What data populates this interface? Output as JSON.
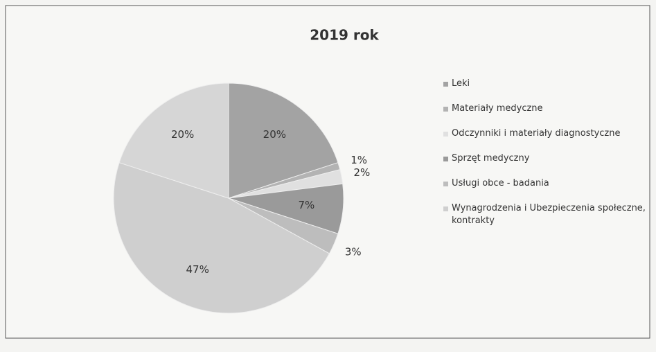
{
  "chart_data": {
    "type": "pie",
    "title": "2019 rok",
    "categories": [
      "Leki",
      "Materiały medyczne",
      "Odczynniki i materiały diagnostyczne",
      "Sprzęt medyczny",
      "Usługi obce - badania",
      "Wynagrodzenia i Ubezpieczenia społeczne, kontrakty",
      null
    ],
    "values": [
      20,
      1,
      2,
      7,
      3,
      47,
      20
    ],
    "value_labels": [
      "20%",
      "1%",
      "2%",
      "7%",
      "3%",
      "47%",
      "20%"
    ],
    "colors": [
      "#a3a3a3",
      "#b3b3b3",
      "#e0e0e0",
      "#9a9a9a",
      "#bdbdbd",
      "#cfcfcf",
      "#d6d6d6"
    ],
    "legend": "right"
  }
}
